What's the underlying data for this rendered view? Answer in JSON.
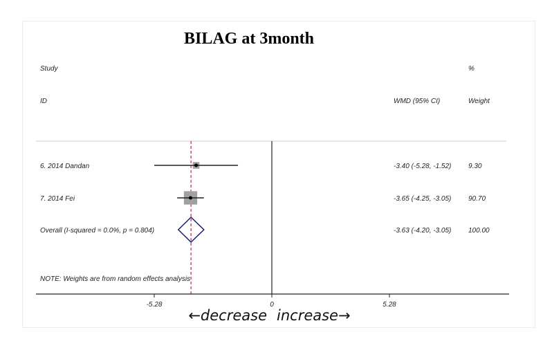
{
  "chart_data": {
    "type": "forest",
    "title": "BILAG at 3month",
    "headers": {
      "study_line1": "Study",
      "study_line2": "ID",
      "effect": "WMD (95% CI)",
      "weight_line1": "%",
      "weight_line2": "Weight"
    },
    "studies": [
      {
        "label": "6. 2014 Dandan",
        "estimate": -3.4,
        "lower": -5.28,
        "upper": -1.52,
        "ci_text": "-3.40 (-5.28, -1.52)",
        "weight": "9.30"
      },
      {
        "label": "7. 2014 Fei",
        "estimate": -3.65,
        "lower": -4.25,
        "upper": -3.05,
        "ci_text": "-3.65 (-4.25, -3.05)",
        "weight": "90.70"
      }
    ],
    "overall": {
      "label": "Overall  (I-squared = 0.0%, p = 0.804)",
      "estimate": -3.63,
      "lower": -4.2,
      "upper": -3.05,
      "ci_text": "-3.63 (-4.20, -3.05)",
      "weight": "100.00"
    },
    "note": "NOTE: Weights are from random effects analysis",
    "x_ticks": [
      "-5.28",
      "0",
      "5.28"
    ],
    "x_tick_values": [
      -5.28,
      0,
      5.28
    ],
    "direction_left": "←decrease",
    "direction_right": "increase→",
    "colors": {
      "diamond": "#1a1a7a",
      "overall_line": "#b03040",
      "box": "#a0a0a0"
    }
  }
}
